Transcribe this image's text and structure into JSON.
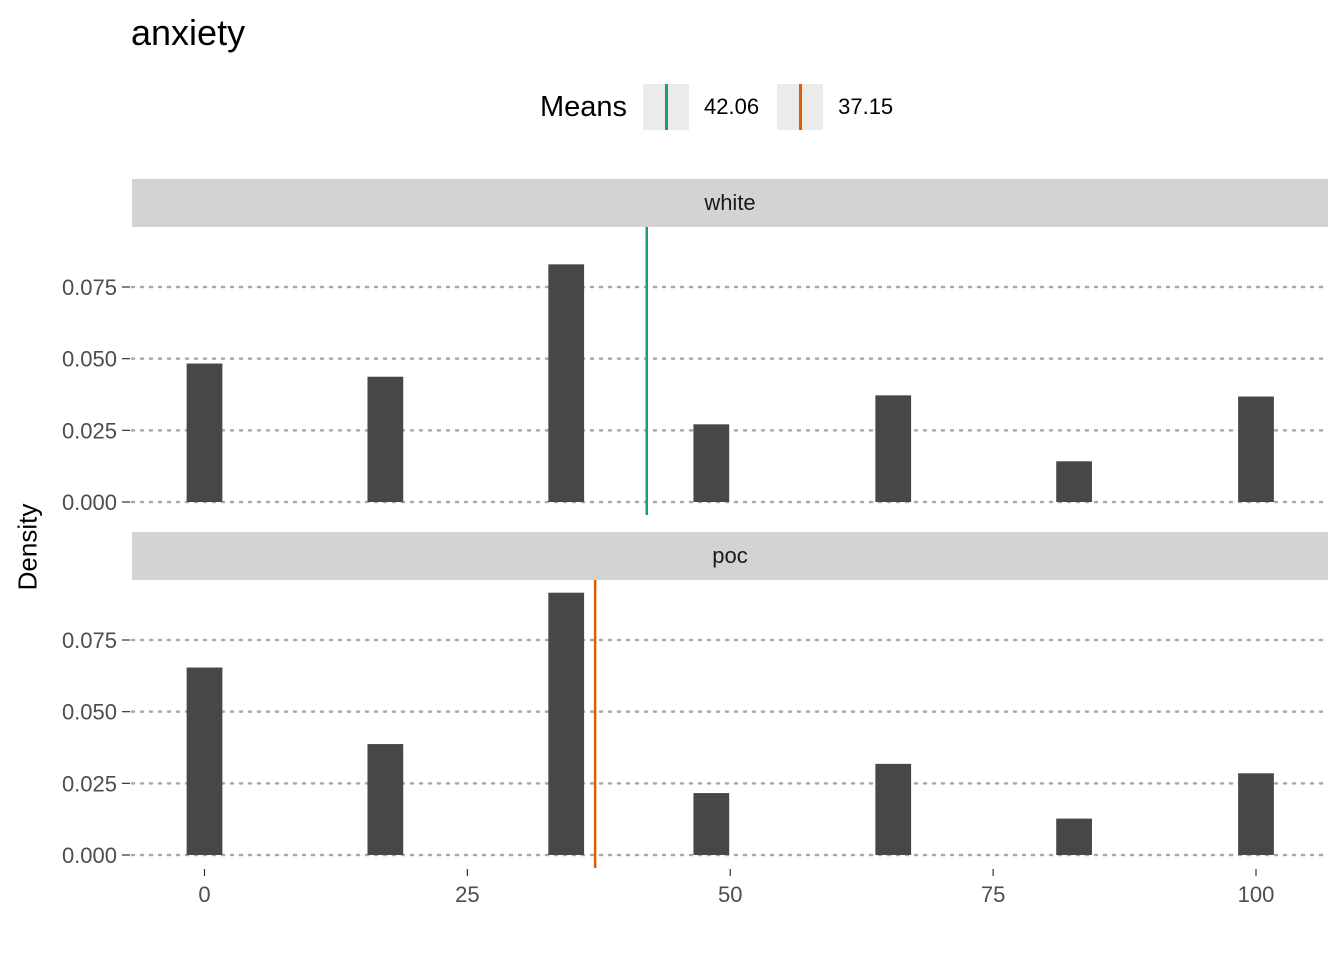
{
  "title": "anxiety",
  "legend": {
    "title": "Means",
    "items": [
      {
        "label": "42.06",
        "value": 42.06,
        "color": "#1b9e77"
      },
      {
        "label": "37.15",
        "value": 37.15,
        "color": "#d95f02"
      }
    ]
  },
  "chart_data": {
    "type": "bar",
    "title": "anxiety",
    "xlabel": "",
    "ylabel": "Density",
    "x_ticks": [
      0,
      25,
      50,
      75,
      100
    ],
    "x_tick_labels": [
      "0",
      "25",
      "50",
      "75",
      "100"
    ],
    "y_ticks": [
      0,
      0.025,
      0.05,
      0.075
    ],
    "y_tick_labels": [
      "0.000",
      "0.025",
      "0.050",
      "0.075"
    ],
    "xlim": [
      -7,
      107
    ],
    "ylim": [
      0,
      0.09
    ],
    "grid": "horizontal dotted",
    "legend_position": "top",
    "bar_color": "#474747",
    "bar_width": 3.4,
    "panels": [
      {
        "strip": "white",
        "mean": 42.06,
        "mean_color": "#1b9e77",
        "bars": [
          {
            "x": 0,
            "y": 0.0483
          },
          {
            "x": 17.2,
            "y": 0.0437
          },
          {
            "x": 34.4,
            "y": 0.0829
          },
          {
            "x": 48.2,
            "y": 0.0271
          },
          {
            "x": 65.5,
            "y": 0.0372
          },
          {
            "x": 82.7,
            "y": 0.0142
          },
          {
            "x": 100,
            "y": 0.0368
          }
        ]
      },
      {
        "strip": "poc",
        "mean": 37.15,
        "mean_color": "#d95f02",
        "bars": [
          {
            "x": 0,
            "y": 0.0654
          },
          {
            "x": 17.2,
            "y": 0.0387
          },
          {
            "x": 34.4,
            "y": 0.0915
          },
          {
            "x": 48.2,
            "y": 0.0216
          },
          {
            "x": 65.5,
            "y": 0.0318
          },
          {
            "x": 82.7,
            "y": 0.0127
          },
          {
            "x": 100,
            "y": 0.0285
          }
        ]
      }
    ]
  }
}
